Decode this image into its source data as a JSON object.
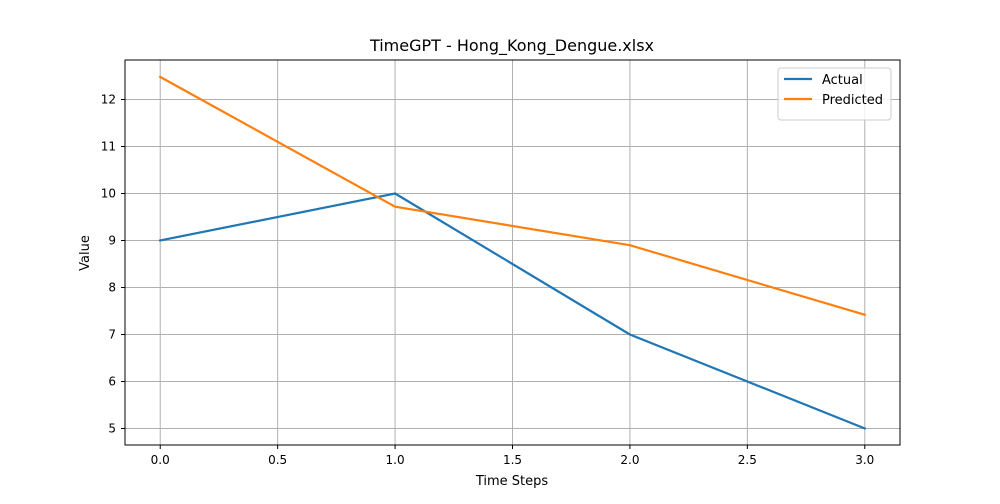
{
  "chart_data": {
    "type": "line",
    "title": "TimeGPT - Hong_Kong_Dengue.xlsx",
    "xlabel": "Time Steps",
    "ylabel": "Value",
    "x": [
      0,
      1,
      2,
      3
    ],
    "series": [
      {
        "name": "Actual",
        "color": "#1f77b4",
        "values": [
          9,
          10,
          7,
          5
        ]
      },
      {
        "name": "Predicted",
        "color": "#ff7f0e",
        "values": [
          12.48,
          9.72,
          8.9,
          7.42
        ]
      }
    ],
    "xlim": [
      -0.15,
      3.15
    ],
    "ylim": [
      4.65,
      12.84
    ],
    "xticks": [
      0.0,
      0.5,
      1.0,
      1.5,
      2.0,
      2.5,
      3.0
    ],
    "xtick_labels": [
      "0.0",
      "0.5",
      "1.0",
      "1.5",
      "2.0",
      "2.5",
      "3.0"
    ],
    "yticks": [
      5,
      6,
      7,
      8,
      9,
      10,
      11,
      12
    ],
    "ytick_labels": [
      "5",
      "6",
      "7",
      "8",
      "9",
      "10",
      "11",
      "12"
    ],
    "grid": true,
    "legend_position": "top-right"
  }
}
